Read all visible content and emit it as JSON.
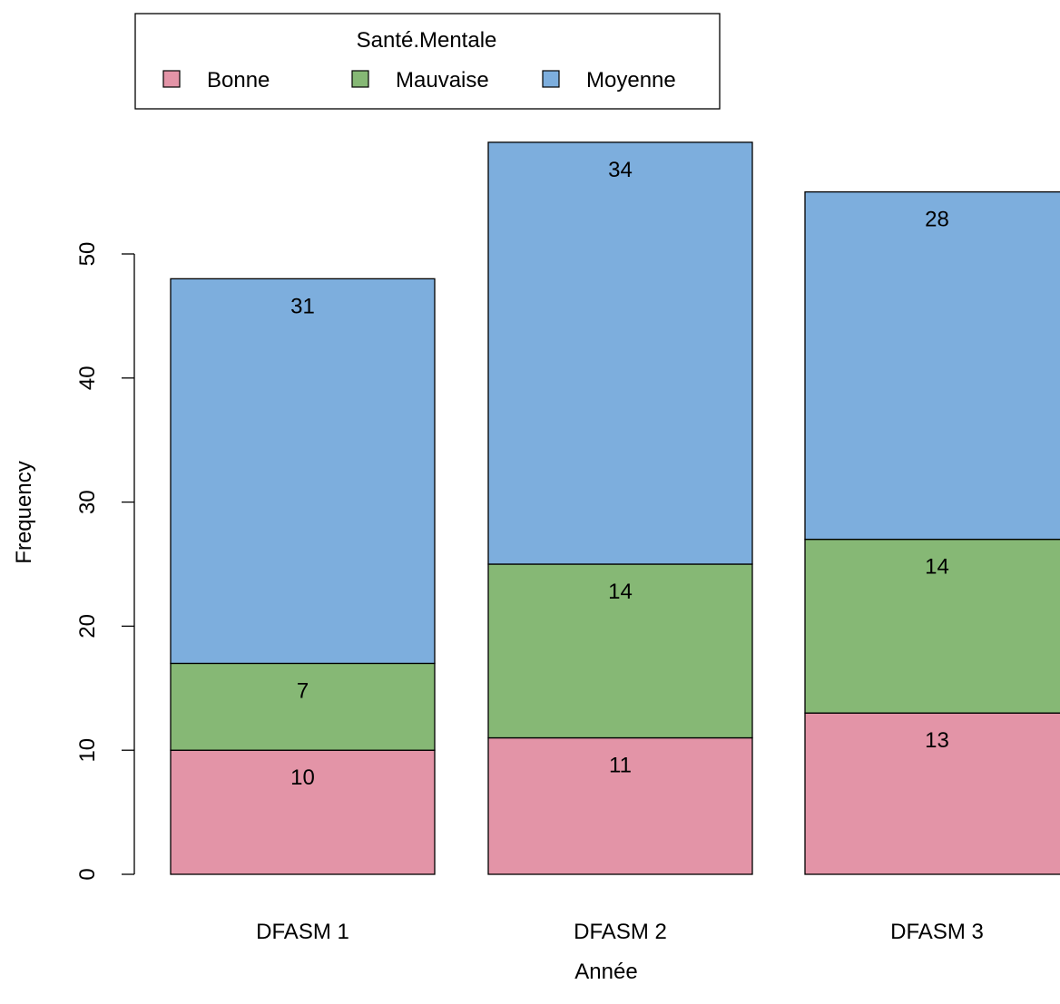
{
  "chart_data": {
    "type": "bar",
    "stacked": true,
    "categories": [
      "DFASM 1",
      "DFASM 2",
      "DFASM 3"
    ],
    "series": [
      {
        "name": "Bonne",
        "values": [
          10,
          11,
          13
        ],
        "color": "#E394A7"
      },
      {
        "name": "Mauvaise",
        "values": [
          7,
          14,
          14
        ],
        "color": "#86B875"
      },
      {
        "name": "Moyenne",
        "values": [
          31,
          34,
          28
        ],
        "color": "#7DAEDD"
      }
    ],
    "xlabel": "Année",
    "ylabel": "Frequency",
    "yticks": [
      0,
      10,
      20,
      30,
      40,
      50
    ],
    "ylim": [
      0,
      60
    ],
    "legend": {
      "title": "Santé.Mentale",
      "placement": "top-left"
    },
    "grid": false
  }
}
